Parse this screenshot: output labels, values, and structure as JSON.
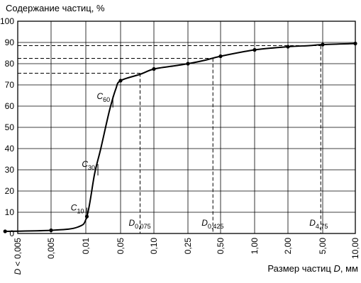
{
  "chart_data": {
    "type": "line",
    "ylabel": "Содержание частиц, %",
    "xlabel": "Размер частиц D, мм",
    "xlabel_parts": {
      "prefix": "Размер частиц ",
      "var": "D",
      "suffix": ", мм"
    },
    "ylim": [
      0,
      100
    ],
    "yticks": [
      "0",
      "10",
      "20",
      "30",
      "40",
      "50",
      "60",
      "70",
      "80",
      "90",
      "100"
    ],
    "xticks": [
      "D < 0,005",
      "0,005",
      "0,01",
      "0,05",
      "0,10",
      "0,25",
      "0,50",
      "1,00",
      "2,00",
      "5,00",
      "10,00"
    ],
    "x_tick_values": [
      null,
      0.005,
      0.01,
      0.05,
      0.1,
      0.25,
      0.5,
      1.0,
      2.0,
      5.0,
      10.0
    ],
    "series": [
      {
        "x": [
          0.002,
          0.005,
          0.0085,
          0.0105,
          0.015,
          0.02,
          0.03,
          0.04,
          0.05,
          0.075,
          0.1,
          0.175,
          0.25,
          0.35,
          0.5,
          1.0,
          2.0,
          3.5,
          5.0,
          10.0
        ],
        "y": [
          1,
          1.5,
          3,
          8,
          28,
          40,
          58,
          68,
          72,
          75,
          77.5,
          79,
          80,
          81.5,
          83.5,
          86.5,
          88,
          88.5,
          89,
          89.5
        ]
      }
    ],
    "markers": {
      "x": [
        0.002,
        0.005,
        0.0105,
        0.05,
        0.1,
        0.25,
        0.5,
        1.0,
        2.0,
        5.0,
        10.0
      ],
      "y": [
        1,
        1.5,
        8,
        72,
        77.5,
        80,
        83.5,
        86.5,
        88,
        89,
        89.5
      ]
    },
    "annotations": [
      {
        "label": "C",
        "sub": "10",
        "x": 0.0105,
        "y": 9.5
      },
      {
        "label": "C",
        "sub": "30",
        "x": 0.0175,
        "y": 30
      },
      {
        "label": "C",
        "sub": "60",
        "x": 0.035,
        "y": 62
      },
      {
        "label": "D",
        "sub": "0,075",
        "x": 0.075,
        "y": 75.5
      },
      {
        "label": "D",
        "sub": "0,425",
        "x": 0.425,
        "y": 82.5
      },
      {
        "label": "D",
        "sub": "4,75",
        "x": 4.75,
        "y": 88.5
      }
    ],
    "grid": true
  }
}
